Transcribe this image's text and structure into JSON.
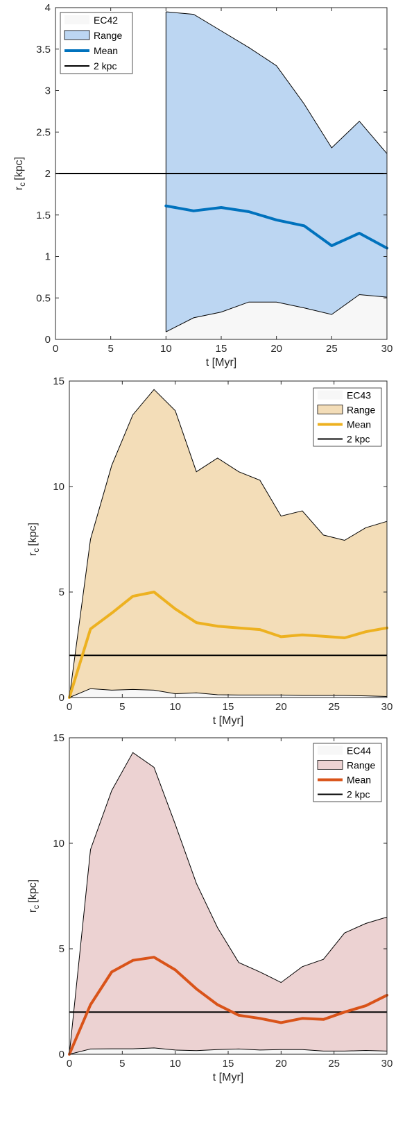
{
  "chart_data": [
    {
      "type": "area",
      "legend_position": "top-left",
      "xlabel": "t [Myr]",
      "ylabel_main": "r",
      "ylabel_sub": "c",
      "ylabel_unit": "[kpc]",
      "xlim": [
        0,
        30
      ],
      "ylim": [
        0,
        4
      ],
      "xticks": [
        0,
        5,
        10,
        15,
        20,
        25,
        30
      ],
      "yticks": [
        0,
        0.5,
        1,
        1.5,
        2,
        2.5,
        3,
        3.5,
        4
      ],
      "legend": [
        "EC42",
        "Range",
        "Mean",
        "2 kpc"
      ],
      "colors": {
        "fill": "#bcd6f2",
        "mean": "#0072bd",
        "min_fill": "#f7f7f7"
      },
      "x": [
        10,
        12.5,
        15,
        17.5,
        20,
        22.5,
        25,
        27.5,
        30
      ],
      "max": [
        3.95,
        3.92,
        3.72,
        3.52,
        3.3,
        2.84,
        2.31,
        2.63,
        2.24
      ],
      "min": [
        0.09,
        0.26,
        0.33,
        0.45,
        0.45,
        0.38,
        0.3,
        0.54,
        0.51
      ],
      "mean": [
        1.61,
        1.55,
        1.59,
        1.54,
        1.44,
        1.37,
        1.13,
        1.28,
        1.1
      ],
      "reference": 2
    },
    {
      "type": "area",
      "legend_position": "top-right",
      "xlabel": "t [Myr]",
      "ylabel_main": "r",
      "ylabel_sub": "c",
      "ylabel_unit": "[kpc]",
      "xlim": [
        0,
        30
      ],
      "ylim": [
        0,
        15
      ],
      "xticks": [
        0,
        5,
        10,
        15,
        20,
        25,
        30
      ],
      "yticks": [
        0,
        5,
        10,
        15
      ],
      "legend": [
        "EC43",
        "Range",
        "Mean",
        "2 kpc"
      ],
      "colors": {
        "fill": "#f3ddb8",
        "mean": "#edb120",
        "min_fill": "#f7f7f7"
      },
      "x": [
        0,
        2,
        4,
        6,
        8,
        10,
        12,
        14,
        16,
        18,
        20,
        22,
        24,
        26,
        28,
        30
      ],
      "max": [
        0,
        7.5,
        11.0,
        13.4,
        14.6,
        13.6,
        10.7,
        11.35,
        10.7,
        10.3,
        8.6,
        8.85,
        7.7,
        7.45,
        8.05,
        8.35
      ],
      "min": [
        0,
        0.42,
        0.35,
        0.38,
        0.35,
        0.18,
        0.22,
        0.13,
        0.12,
        0.12,
        0.12,
        0.1,
        0.1,
        0.1,
        0.08,
        0.05
      ],
      "mean": [
        0,
        3.25,
        4.0,
        4.8,
        5.0,
        4.2,
        3.55,
        3.38,
        3.3,
        3.22,
        2.88,
        2.97,
        2.9,
        2.83,
        3.12,
        3.3
      ],
      "reference": 2
    },
    {
      "type": "area",
      "legend_position": "top-right",
      "xlabel": "t [Myr]",
      "ylabel_main": "r",
      "ylabel_sub": "c",
      "ylabel_unit": "[kpc]",
      "xlim": [
        0,
        30
      ],
      "ylim": [
        0,
        15
      ],
      "xticks": [
        0,
        5,
        10,
        15,
        20,
        25,
        30
      ],
      "yticks": [
        0,
        5,
        10,
        15
      ],
      "legend": [
        "EC44",
        "Range",
        "Mean",
        "2 kpc"
      ],
      "colors": {
        "fill": "#ecd2d2",
        "mean": "#d95319",
        "min_fill": "#f7f7f7"
      },
      "x": [
        0,
        2,
        4,
        6,
        8,
        10,
        12,
        14,
        16,
        18,
        20,
        22,
        24,
        26,
        28,
        30
      ],
      "max": [
        0,
        9.7,
        12.5,
        14.3,
        13.6,
        10.9,
        8.1,
        6.0,
        4.35,
        3.9,
        3.4,
        4.15,
        4.5,
        5.75,
        6.2,
        6.5
      ],
      "min": [
        0,
        0.25,
        0.26,
        0.26,
        0.3,
        0.2,
        0.17,
        0.22,
        0.25,
        0.2,
        0.22,
        0.22,
        0.15,
        0.15,
        0.18,
        0.15
      ],
      "mean": [
        0,
        2.35,
        3.9,
        4.45,
        4.6,
        4.0,
        3.1,
        2.35,
        1.85,
        1.7,
        1.5,
        1.7,
        1.65,
        2.0,
        2.3,
        2.8
      ],
      "reference": 2
    }
  ]
}
